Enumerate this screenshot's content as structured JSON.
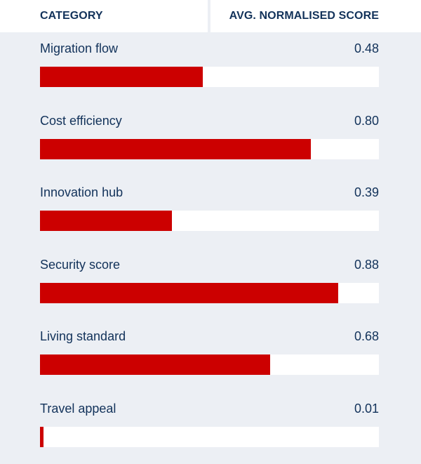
{
  "header": {
    "category_label": "CATEGORY",
    "score_label": "AVG. NORMALISED SCORE"
  },
  "colors": {
    "bar": "#cc0000",
    "track": "#ffffff",
    "background": "#eceff4",
    "text": "#12325a"
  },
  "chart_data": {
    "type": "bar",
    "orientation": "horizontal",
    "xlim": [
      0,
      1
    ],
    "categories": [
      "Migration flow",
      "Cost efficiency",
      "Innovation hub",
      "Security score",
      "Living standard",
      "Travel appeal"
    ],
    "values": [
      0.48,
      0.8,
      0.39,
      0.88,
      0.68,
      0.01
    ],
    "value_labels": [
      "0.48",
      "0.80",
      "0.39",
      "0.88",
      "0.68",
      "0.01"
    ]
  }
}
